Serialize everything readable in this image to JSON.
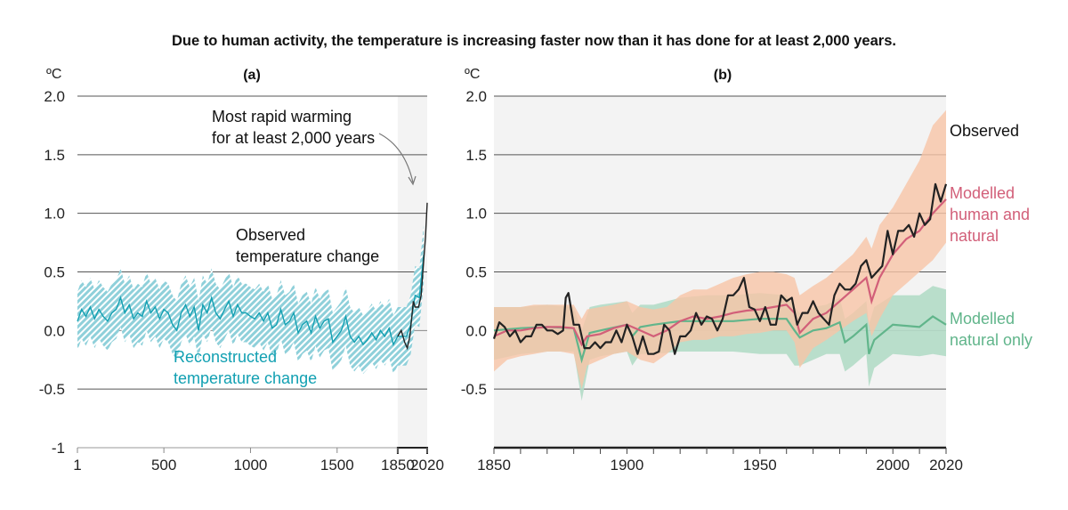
{
  "title": "Due to human activity, the temperature is increasing faster now than it has done for at least 2,000 years.",
  "colors": {
    "observed": "#222222",
    "reconstructed_line": "#12a0b2",
    "reconstructed_band": "#8fd0da",
    "human_natural_line": "#d25f79",
    "human_natural_band": "#f8c4a6",
    "natural_line": "#61b58b",
    "natural_band": "#b3dcc6",
    "recent_period_shading": "#f3f3f3"
  },
  "chart_data": [
    {
      "type": "line",
      "panel_label": "(a)",
      "ylabel": "ºC",
      "ylim": [
        -1,
        2
      ],
      "yticks": [
        "2.0",
        "1.5",
        "1.0",
        "0.5",
        "0.0",
        "-0.5",
        "-1"
      ],
      "ytick_values": [
        2,
        1.5,
        1,
        0.5,
        0,
        -0.5,
        -1
      ],
      "xlim": [
        1,
        2020
      ],
      "xticks": [
        "1",
        "500",
        "1000",
        "1500",
        "1850",
        "2020"
      ],
      "xtick_values": [
        1,
        500,
        1000,
        1500,
        1850,
        2020
      ],
      "grid": "horizontal",
      "shaded_period": [
        1850,
        2020
      ],
      "annotations": {
        "rapid": [
          "Most rapid warming",
          "for at least 2,000 years"
        ],
        "observed": [
          "Observed",
          "temperature change"
        ],
        "reconstructed": [
          "Reconstructed",
          "temperature change"
        ]
      },
      "series": [
        {
          "name": "Reconstructed temperature change",
          "band_halfwidth": 0.25,
          "x": [
            1,
            25,
            50,
            75,
            100,
            125,
            150,
            175,
            200,
            225,
            250,
            275,
            300,
            325,
            350,
            375,
            400,
            425,
            450,
            475,
            500,
            525,
            550,
            575,
            600,
            625,
            650,
            675,
            700,
            725,
            750,
            775,
            800,
            825,
            850,
            875,
            900,
            925,
            950,
            975,
            1000,
            1025,
            1050,
            1075,
            1100,
            1125,
            1150,
            1175,
            1200,
            1225,
            1250,
            1275,
            1300,
            1325,
            1350,
            1375,
            1400,
            1425,
            1450,
            1475,
            1500,
            1525,
            1550,
            1575,
            1600,
            1625,
            1650,
            1675,
            1700,
            1725,
            1750,
            1775,
            1800,
            1825,
            1850,
            1875,
            1900,
            1925,
            1950,
            1975,
            2000
          ],
          "y": [
            0.08,
            0.18,
            0.12,
            0.2,
            0.1,
            0.18,
            0.12,
            0.08,
            0.15,
            0.18,
            0.28,
            0.15,
            0.22,
            0.1,
            0.15,
            0.12,
            0.25,
            0.15,
            0.2,
            0.1,
            0.18,
            0.15,
            0.05,
            0.0,
            0.15,
            0.22,
            0.12,
            0.2,
            0.0,
            0.22,
            0.15,
            0.28,
            0.15,
            0.1,
            0.18,
            0.25,
            0.12,
            0.22,
            0.15,
            0.15,
            0.12,
            0.1,
            0.15,
            0.08,
            0.15,
            0.02,
            0.05,
            0.18,
            0.05,
            0.08,
            0.15,
            -0.02,
            0.05,
            0.08,
            -0.02,
            0.12,
            0.02,
            0.08,
            0.1,
            -0.1,
            -0.05,
            0.0,
            0.12,
            -0.05,
            -0.1,
            -0.05,
            -0.12,
            -0.08,
            -0.02,
            -0.08,
            0.0,
            -0.05,
            0.02,
            -0.12,
            -0.05,
            -0.05,
            -0.05,
            0.05,
            0.3,
            0.28,
            0.65
          ]
        },
        {
          "name": "Observed temperature change",
          "x": [
            1850,
            1870,
            1890,
            1905,
            1920,
            1940,
            1950,
            1970,
            1985,
            2000,
            2010,
            2020
          ],
          "y": [
            -0.05,
            0.0,
            -0.1,
            -0.15,
            -0.05,
            0.25,
            0.2,
            0.2,
            0.3,
            0.6,
            0.8,
            1.09
          ]
        }
      ]
    },
    {
      "type": "line",
      "panel_label": "(b)",
      "ylabel": "ºC",
      "ylim": [
        -1,
        2
      ],
      "yticks": [
        "2.0",
        "1.5",
        "1.0",
        "0.5",
        "0.0",
        "-0.5"
      ],
      "ytick_values": [
        2,
        1.5,
        1,
        0.5,
        0,
        -0.5
      ],
      "xlim": [
        1850,
        2020
      ],
      "xticks": [
        "1850",
        "1900",
        "1950",
        "2000",
        "2020"
      ],
      "xtick_values": [
        1850,
        1900,
        1950,
        2000,
        2020
      ],
      "grid": "horizontal",
      "series": [
        {
          "name": "Modelled human and natural",
          "label": [
            "Modelled",
            "human and",
            "natural"
          ],
          "x": [
            1850,
            1855,
            1860,
            1865,
            1870,
            1875,
            1880,
            1883,
            1885,
            1890,
            1895,
            1900,
            1905,
            1910,
            1915,
            1920,
            1925,
            1930,
            1935,
            1940,
            1945,
            1950,
            1955,
            1960,
            1963,
            1965,
            1970,
            1975,
            1980,
            1985,
            1990,
            1992,
            1995,
            2000,
            2005,
            2010,
            2015,
            2020
          ],
          "y": [
            -0.05,
            0.0,
            0.0,
            0.02,
            0.03,
            0.03,
            0.02,
            -0.12,
            -0.05,
            -0.03,
            0.02,
            0.05,
            0.0,
            -0.05,
            0.0,
            0.08,
            0.12,
            0.1,
            0.12,
            0.15,
            0.17,
            0.18,
            0.2,
            0.22,
            0.15,
            -0.02,
            0.1,
            0.15,
            0.25,
            0.35,
            0.45,
            0.25,
            0.45,
            0.65,
            0.78,
            0.85,
            1.0,
            1.12
          ],
          "lower": [
            -0.35,
            -0.25,
            -0.22,
            -0.2,
            -0.18,
            -0.18,
            -0.2,
            -0.5,
            -0.3,
            -0.25,
            -0.2,
            -0.18,
            -0.25,
            -0.28,
            -0.2,
            -0.1,
            -0.08,
            -0.08,
            -0.05,
            -0.05,
            -0.03,
            -0.02,
            0.0,
            0.0,
            -0.1,
            -0.32,
            -0.15,
            -0.08,
            0.0,
            0.08,
            0.15,
            -0.05,
            0.1,
            0.3,
            0.4,
            0.5,
            0.6,
            0.75
          ],
          "upper": [
            0.2,
            0.2,
            0.2,
            0.22,
            0.22,
            0.22,
            0.22,
            0.1,
            0.18,
            0.2,
            0.22,
            0.25,
            0.2,
            0.18,
            0.2,
            0.3,
            0.35,
            0.35,
            0.4,
            0.45,
            0.48,
            0.5,
            0.5,
            0.48,
            0.45,
            0.3,
            0.38,
            0.45,
            0.55,
            0.65,
            0.8,
            0.7,
            0.9,
            1.05,
            1.25,
            1.45,
            1.75,
            1.88
          ]
        },
        {
          "name": "Modelled natural only",
          "label": [
            "Modelled",
            "natural only"
          ],
          "x": [
            1850,
            1860,
            1870,
            1880,
            1883,
            1886,
            1890,
            1900,
            1902,
            1905,
            1910,
            1920,
            1930,
            1940,
            1950,
            1960,
            1963,
            1965,
            1970,
            1975,
            1980,
            1982,
            1985,
            1990,
            1991,
            1993,
            2000,
            2010,
            2015,
            2020
          ],
          "y": [
            0.0,
            0.02,
            0.03,
            0.02,
            -0.25,
            -0.02,
            0.0,
            0.05,
            -0.05,
            0.03,
            0.05,
            0.08,
            0.08,
            0.08,
            0.1,
            0.1,
            0.0,
            -0.06,
            0.0,
            0.02,
            0.07,
            -0.1,
            -0.05,
            0.05,
            -0.2,
            -0.08,
            0.05,
            0.03,
            0.12,
            0.05
          ],
          "lower": [
            -0.25,
            -0.2,
            -0.18,
            -0.18,
            -0.6,
            -0.25,
            -0.22,
            -0.18,
            -0.3,
            -0.2,
            -0.2,
            -0.18,
            -0.18,
            -0.18,
            -0.2,
            -0.2,
            -0.3,
            -0.3,
            -0.25,
            -0.2,
            -0.2,
            -0.35,
            -0.3,
            -0.2,
            -0.48,
            -0.32,
            -0.2,
            -0.22,
            -0.2,
            -0.22
          ],
          "upper": [
            0.2,
            0.2,
            0.22,
            0.2,
            0.0,
            0.2,
            0.22,
            0.25,
            0.15,
            0.22,
            0.22,
            0.28,
            0.3,
            0.3,
            0.32,
            0.3,
            0.2,
            0.15,
            0.2,
            0.22,
            0.28,
            0.1,
            0.15,
            0.25,
            0.05,
            0.2,
            0.3,
            0.3,
            0.38,
            0.35
          ]
        },
        {
          "name": "Observed",
          "label": [
            "Observed"
          ],
          "x": [
            1850,
            1852,
            1854,
            1856,
            1858,
            1860,
            1862,
            1864,
            1866,
            1868,
            1870,
            1872,
            1874,
            1876,
            1877,
            1878,
            1880,
            1882,
            1884,
            1886,
            1888,
            1890,
            1892,
            1894,
            1896,
            1898,
            1900,
            1902,
            1904,
            1906,
            1908,
            1910,
            1912,
            1914,
            1916,
            1918,
            1920,
            1922,
            1924,
            1926,
            1928,
            1930,
            1932,
            1934,
            1936,
            1938,
            1940,
            1942,
            1944,
            1946,
            1948,
            1950,
            1952,
            1954,
            1956,
            1958,
            1960,
            1962,
            1964,
            1966,
            1968,
            1970,
            1972,
            1974,
            1976,
            1978,
            1980,
            1982,
            1984,
            1986,
            1988,
            1990,
            1992,
            1994,
            1996,
            1998,
            2000,
            2002,
            2004,
            2006,
            2008,
            2010,
            2012,
            2014,
            2016,
            2018,
            2020
          ],
          "y": [
            -0.07,
            0.07,
            0.03,
            -0.05,
            0.0,
            -0.1,
            -0.05,
            -0.05,
            0.05,
            0.05,
            0.0,
            0.0,
            -0.03,
            0.0,
            0.28,
            0.32,
            0.05,
            0.05,
            -0.15,
            -0.15,
            -0.1,
            -0.15,
            -0.1,
            -0.1,
            0.0,
            -0.1,
            0.05,
            -0.05,
            -0.2,
            -0.05,
            -0.2,
            -0.2,
            -0.18,
            0.05,
            0.0,
            -0.2,
            -0.05,
            -0.05,
            0.0,
            0.15,
            0.05,
            0.12,
            0.1,
            0.0,
            0.1,
            0.3,
            0.3,
            0.35,
            0.45,
            0.2,
            0.18,
            0.08,
            0.2,
            0.05,
            0.05,
            0.3,
            0.25,
            0.28,
            0.05,
            0.15,
            0.15,
            0.25,
            0.15,
            0.1,
            0.05,
            0.3,
            0.4,
            0.35,
            0.35,
            0.4,
            0.55,
            0.6,
            0.45,
            0.5,
            0.55,
            0.85,
            0.65,
            0.85,
            0.85,
            0.9,
            0.8,
            1.0,
            0.9,
            0.95,
            1.25,
            1.1,
            1.25
          ]
        }
      ]
    }
  ]
}
